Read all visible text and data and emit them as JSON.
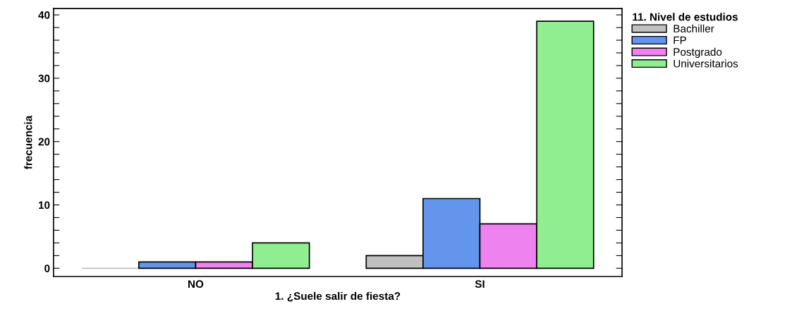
{
  "chart_data": {
    "type": "bar",
    "xlabel": "1. ¿Suele salir de fiesta?",
    "ylabel": "frecuencia",
    "legend_title": "11. Nivel de estudios",
    "categories": [
      "NO",
      "SI"
    ],
    "series": [
      {
        "name": "Bachiller",
        "color": "#c0c0c0",
        "values": [
          0,
          2
        ]
      },
      {
        "name": "FP",
        "color": "#6495ed",
        "values": [
          1,
          11
        ]
      },
      {
        "name": "Postgrado",
        "color": "#ee82ee",
        "values": [
          1,
          7
        ]
      },
      {
        "name": "Universitarios",
        "color": "#90ee90",
        "values": [
          4,
          39
        ]
      }
    ],
    "ylim": [
      -1.3,
      41
    ],
    "yticks": [
      0,
      {
        "value": 2,
        "label": null
      },
      {
        "value": 4,
        "label": null
      },
      {
        "value": 6,
        "label": null
      },
      {
        "value": 8,
        "label": null
      },
      10,
      {
        "value": 12,
        "label": null
      },
      {
        "value": 14,
        "label": null
      },
      {
        "value": 16,
        "label": null
      },
      {
        "value": 18,
        "label": null
      },
      20,
      {
        "value": 22,
        "label": null
      },
      {
        "value": 24,
        "label": null
      },
      {
        "value": 26,
        "label": null
      },
      {
        "value": 28,
        "label": null
      },
      30,
      {
        "value": 32,
        "label": null
      },
      {
        "value": 34,
        "label": null
      },
      {
        "value": 36,
        "label": null
      },
      {
        "value": 38,
        "label": null
      },
      40
    ],
    "grid": false,
    "legend": "top right"
  }
}
